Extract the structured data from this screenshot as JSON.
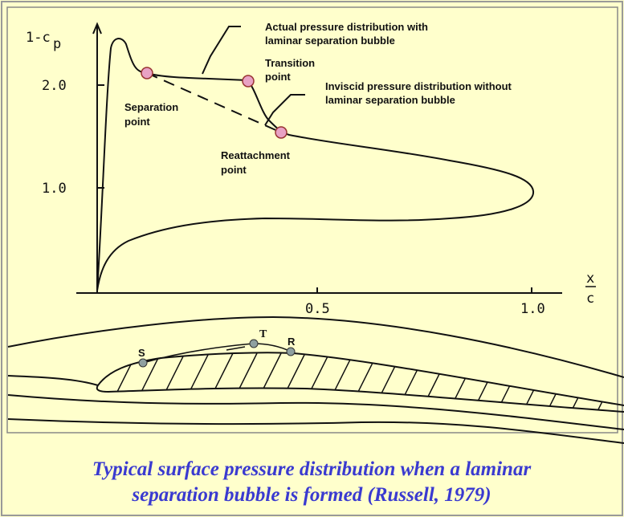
{
  "axis": {
    "y_label": "1-c",
    "y_label_sub": "p",
    "x_label_num": "x",
    "x_label_den": "c",
    "yticks": [
      "2.0",
      "1.0"
    ],
    "xticks": [
      "0.5",
      "1.0"
    ]
  },
  "annotations": {
    "actual": [
      "Actual pressure distribution with",
      "laminar separation bubble"
    ],
    "transition": [
      "Transition",
      "point"
    ],
    "inviscid": [
      "Inviscid pressure distribution without",
      "laminar separation bubble"
    ],
    "separation": [
      "Separation",
      "point"
    ],
    "reattachment": [
      "Reattachment",
      "point"
    ]
  },
  "airfoil_labels": [
    "S",
    "T",
    "R"
  ],
  "caption": [
    "Typical surface pressure distribution when a laminar",
    "separation bubble is formed  (Russell, 1979)"
  ]
}
